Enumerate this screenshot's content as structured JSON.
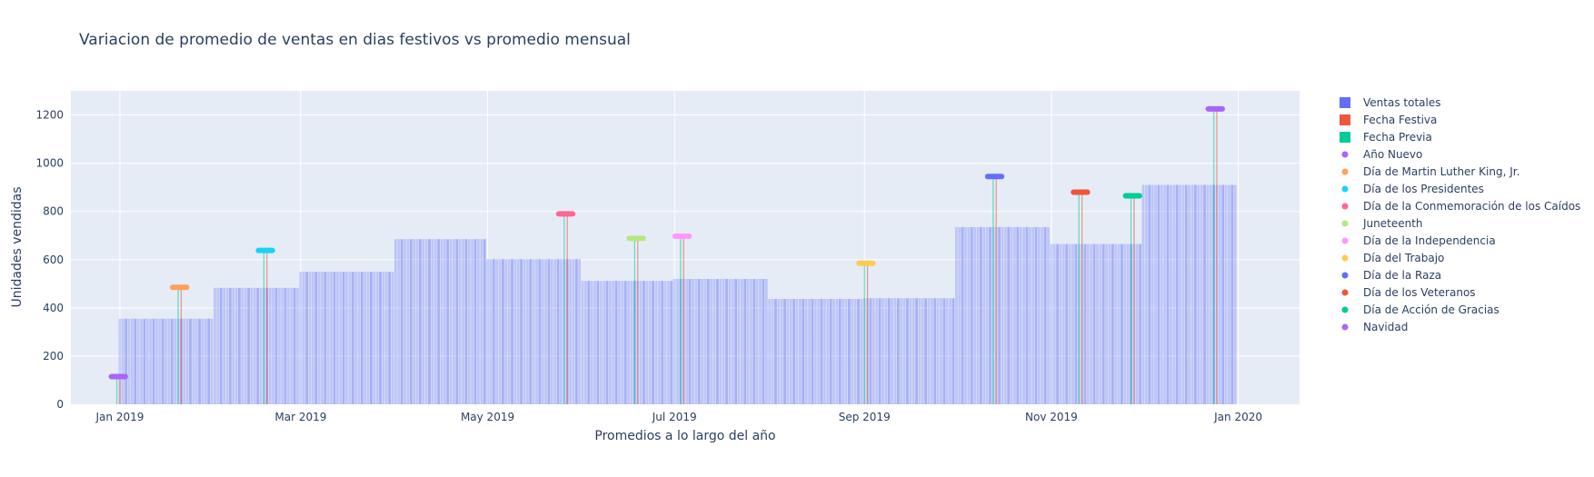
{
  "chart_data": {
    "type": "bar",
    "title": "Variacion de promedio de ventas en dias festivos vs promedio mensual",
    "xlabel": "Promedios a lo largo del año",
    "ylabel": "Unidades vendidas",
    "x_range": [
      "2018-12-16",
      "2020-01-21"
    ],
    "ylim": [
      0,
      1300
    ],
    "y_ticks": [
      0,
      200,
      400,
      600,
      800,
      1000,
      1200
    ],
    "x_ticks": [
      {
        "date": "2019-01-01",
        "label": "Jan 2019"
      },
      {
        "date": "2019-03-01",
        "label": "Mar 2019"
      },
      {
        "date": "2019-05-01",
        "label": "May 2019"
      },
      {
        "date": "2019-07-01",
        "label": "Jul 2019"
      },
      {
        "date": "2019-09-01",
        "label": "Sep 2019"
      },
      {
        "date": "2019-11-01",
        "label": "Nov 2019"
      },
      {
        "date": "2020-01-01",
        "label": "Jan 2020"
      }
    ],
    "grid": true,
    "legend_position": "right",
    "colors": {
      "ventas_totales": "#636efa",
      "fecha_festiva": "#ef553b",
      "fecha_previa": "#00cc96",
      "plot_bg": "#e5ecf6"
    },
    "legend": [
      {
        "label": "Ventas totales",
        "marker": "square",
        "color": "#636efa"
      },
      {
        "label": "Fecha Festiva",
        "marker": "square",
        "color": "#ef553b"
      },
      {
        "label": "Fecha Previa",
        "marker": "square",
        "color": "#00cc96"
      },
      {
        "label": "Año Nuevo",
        "marker": "dot",
        "color": "#ab63fa"
      },
      {
        "label": "Día de Martin Luther King, Jr.",
        "marker": "dot",
        "color": "#ffa15a"
      },
      {
        "label": "Día de los Presidentes",
        "marker": "dot",
        "color": "#19d3f3"
      },
      {
        "label": "Día de la Conmemoración de los Caídos",
        "marker": "dot",
        "color": "#ff6692"
      },
      {
        "label": "Juneteenth",
        "marker": "dot",
        "color": "#b6e880"
      },
      {
        "label": "Día de la Independencia",
        "marker": "dot",
        "color": "#ff97ff"
      },
      {
        "label": "Día del Trabajo",
        "marker": "dot",
        "color": "#fecb52"
      },
      {
        "label": "Día de la Raza",
        "marker": "dot",
        "color": "#636efa"
      },
      {
        "label": "Día de los Veteranos",
        "marker": "dot",
        "color": "#ef553b"
      },
      {
        "label": "Día de Acción de Gracias",
        "marker": "dot",
        "color": "#00cc96"
      },
      {
        "label": "Navidad",
        "marker": "dot",
        "color": "#ab63fa"
      }
    ],
    "monthly_averages": [
      {
        "month": "2019-01",
        "value": 355
      },
      {
        "month": "2019-02",
        "value": 483
      },
      {
        "month": "2019-03",
        "value": 550
      },
      {
        "month": "2019-04",
        "value": 685
      },
      {
        "month": "2019-05",
        "value": 603
      },
      {
        "month": "2019-06",
        "value": 512
      },
      {
        "month": "2019-07",
        "value": 520
      },
      {
        "month": "2019-08",
        "value": 437
      },
      {
        "month": "2019-09",
        "value": 440
      },
      {
        "month": "2019-10",
        "value": 735
      },
      {
        "month": "2019-11",
        "value": 665
      },
      {
        "month": "2019-12",
        "value": 910
      }
    ],
    "holidays": [
      {
        "name": "Año Nuevo",
        "color": "#ab63fa",
        "date": "2019-01-01",
        "previa_date": "2018-12-31",
        "value": 115
      },
      {
        "name": "Día de Martin Luther King, Jr.",
        "color": "#ffa15a",
        "date": "2019-01-21",
        "previa_date": "2019-01-20",
        "value": 485
      },
      {
        "name": "Día de los Presidentes",
        "color": "#19d3f3",
        "date": "2019-02-18",
        "previa_date": "2019-02-17",
        "value": 638
      },
      {
        "name": "Día de la Conmemoración de los Caídos",
        "color": "#ff6692",
        "date": "2019-05-27",
        "previa_date": "2019-05-26",
        "value": 790
      },
      {
        "name": "Juneteenth",
        "color": "#b6e880",
        "date": "2019-06-19",
        "previa_date": "2019-06-18",
        "value": 688
      },
      {
        "name": "Día de la Independencia",
        "color": "#ff97ff",
        "date": "2019-07-04",
        "previa_date": "2019-07-03",
        "value": 697
      },
      {
        "name": "Día del Trabajo",
        "color": "#fecb52",
        "date": "2019-09-02",
        "previa_date": "2019-09-01",
        "value": 585
      },
      {
        "name": "Día de la Raza",
        "color": "#636efa",
        "date": "2019-10-14",
        "previa_date": "2019-10-13",
        "value": 945
      },
      {
        "name": "Día de los Veteranos",
        "color": "#ef553b",
        "date": "2019-11-11",
        "previa_date": "2019-11-10",
        "value": 880
      },
      {
        "name": "Día de Acción de Gracias",
        "color": "#00cc96",
        "date": "2019-11-28",
        "previa_date": "2019-11-27",
        "value": 865
      },
      {
        "name": "Navidad",
        "color": "#ab63fa",
        "date": "2019-12-25",
        "previa_date": "2019-12-24",
        "value": 1225
      }
    ]
  }
}
